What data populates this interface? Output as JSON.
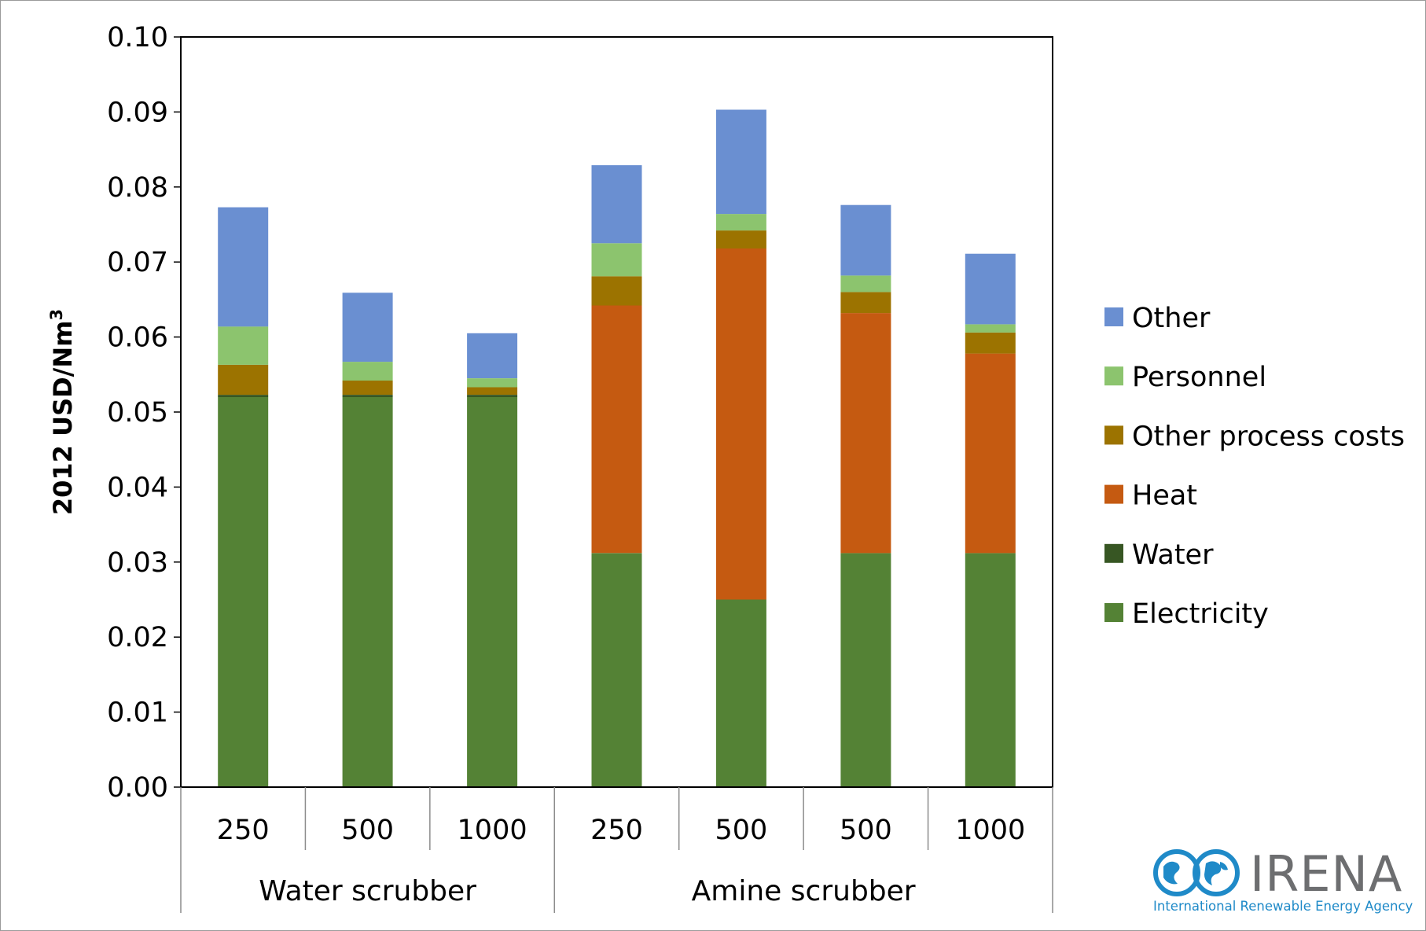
{
  "chart_data": {
    "type": "bar",
    "stacked": true,
    "ylabel": "2012 USD/Nm",
    "ylabel_superscript": "3",
    "ylim": [
      0,
      0.1
    ],
    "yticks": [
      "0.00",
      "0.01",
      "0.02",
      "0.03",
      "0.04",
      "0.05",
      "0.06",
      "0.07",
      "0.08",
      "0.09",
      "0.10"
    ],
    "categories": [
      "250",
      "500",
      "1000",
      "250",
      "500",
      "500",
      "1000"
    ],
    "groups": [
      {
        "label": "Water scrubber",
        "span": 3
      },
      {
        "label": "Amine scrubber",
        "span": 4
      }
    ],
    "series": [
      {
        "name": "Electricity",
        "color": "#548235",
        "values": [
          0.052,
          0.052,
          0.052,
          0.0312,
          0.025,
          0.0312,
          0.0312
        ]
      },
      {
        "name": "Water",
        "color": "#375623",
        "values": [
          0.0003,
          0.0003,
          0.0003,
          0.0,
          0.0,
          0.0,
          0.0
        ]
      },
      {
        "name": "Heat",
        "color": "#c55a11",
        "values": [
          0.0,
          0.0,
          0.0,
          0.033,
          0.0468,
          0.032,
          0.0266
        ]
      },
      {
        "name": "Other process costs",
        "color": "#9c7300",
        "values": [
          0.004,
          0.0019,
          0.001,
          0.0039,
          0.0024,
          0.0028,
          0.0028
        ]
      },
      {
        "name": "Personnel",
        "color": "#8cc46e",
        "values": [
          0.0051,
          0.0025,
          0.0012,
          0.0044,
          0.0022,
          0.0022,
          0.0011
        ]
      },
      {
        "name": "Other",
        "color": "#6a8fd1",
        "values": [
          0.0159,
          0.0092,
          0.006,
          0.0104,
          0.0139,
          0.0094,
          0.0094
        ]
      }
    ],
    "legend": {
      "placement": "right",
      "order": [
        "Other",
        "Personnel",
        "Other process costs",
        "Heat",
        "Water",
        "Electricity"
      ]
    },
    "grid": false
  },
  "logo": {
    "name": "IRENA",
    "subtitle": "International Renewable Energy Agency",
    "icon": "globe-infinity-icon",
    "color_primary": "#1f8ac8",
    "color_text": "#6d6e70"
  }
}
